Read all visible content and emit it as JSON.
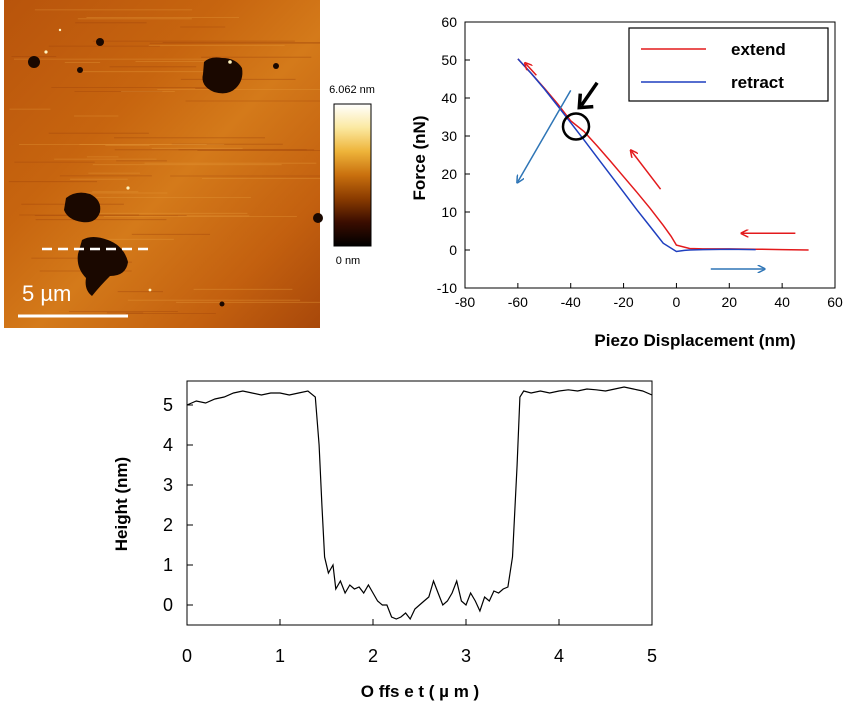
{
  "afm_image": {
    "scale_bar_label": "5 µm",
    "colorbar_max_label": "6.062 nm",
    "colorbar_min_label": "0 nm",
    "colormap_colors": [
      "#000000",
      "#3a0d00",
      "#8a3b00",
      "#c9700e",
      "#eeb43a",
      "#fbe9a1",
      "#ffffff"
    ]
  },
  "chart_data": [
    {
      "type": "line",
      "xlabel": "Piezo Displacement (nm)",
      "ylabel": "Force (nN)",
      "xlim": [
        -80,
        60
      ],
      "ylim": [
        -10,
        60
      ],
      "xticks": [
        -80,
        -60,
        -40,
        -20,
        0,
        20,
        40,
        60
      ],
      "yticks": [
        -10,
        0,
        10,
        20,
        30,
        40,
        50,
        60
      ],
      "legend_position": "top-right",
      "series": [
        {
          "name": "extend",
          "color": "#e31a1c",
          "x": [
            -60,
            -55,
            -50,
            -45,
            -40,
            -35,
            -30,
            -25,
            -20,
            -15,
            -10,
            -5,
            -2,
            0,
            5,
            10,
            20,
            30,
            40,
            50
          ],
          "y": [
            50.3,
            46.5,
            42.6,
            38.5,
            34.0,
            31.2,
            27.4,
            23.4,
            19.3,
            15.2,
            11.0,
            6.5,
            3.6,
            1.3,
            0.4,
            0.3,
            0.3,
            0.2,
            0.1,
            0.0
          ]
        },
        {
          "name": "retract",
          "color": "#1f3fbf",
          "x": [
            -60,
            -55,
            -50,
            -45,
            -40,
            -35,
            -30,
            -25,
            -20,
            -15,
            -10,
            -5,
            0,
            3,
            5,
            10,
            20,
            30
          ],
          "y": [
            50.3,
            46.5,
            42.4,
            38.0,
            33.5,
            29.0,
            24.4,
            19.8,
            15.2,
            10.6,
            6.2,
            1.8,
            -0.4,
            -0.1,
            0.0,
            0.1,
            0.2,
            0.1
          ]
        }
      ],
      "annotations": {
        "arrow_color_extend": "#e31a1c",
        "arrow_color_retract": "#2e75b6",
        "arrow_color_left_slope": "#2e75b6",
        "circle_at": [
          -38,
          32.5
        ]
      }
    },
    {
      "type": "line",
      "xlabel": "O ffs e t ( µ m )",
      "ylabel": "Height (nm)",
      "xlim": [
        0,
        5
      ],
      "ylim": [
        -0.5,
        5.6
      ],
      "xticks": [
        0,
        1,
        2,
        3,
        4,
        5
      ],
      "yticks": [
        0,
        1,
        2,
        3,
        4,
        5
      ],
      "series": [
        {
          "color": "#000000",
          "x": [
            0,
            0.1,
            0.2,
            0.3,
            0.4,
            0.5,
            0.6,
            0.7,
            0.8,
            0.9,
            1.0,
            1.1,
            1.2,
            1.3,
            1.38,
            1.42,
            1.45,
            1.48,
            1.52,
            1.57,
            1.6,
            1.65,
            1.7,
            1.75,
            1.8,
            1.85,
            1.9,
            1.95,
            2.0,
            2.05,
            2.1,
            2.15,
            2.2,
            2.25,
            2.3,
            2.35,
            2.4,
            2.45,
            2.5,
            2.55,
            2.6,
            2.65,
            2.7,
            2.75,
            2.8,
            2.85,
            2.9,
            2.95,
            3.0,
            3.05,
            3.1,
            3.15,
            3.2,
            3.25,
            3.3,
            3.35,
            3.4,
            3.45,
            3.5,
            3.55,
            3.58,
            3.62,
            3.7,
            3.8,
            3.9,
            4.0,
            4.1,
            4.2,
            4.3,
            4.4,
            4.5,
            4.6,
            4.7,
            4.8,
            4.9,
            5.0
          ],
          "y": [
            5.0,
            5.1,
            5.05,
            5.15,
            5.2,
            5.3,
            5.35,
            5.3,
            5.25,
            5.3,
            5.3,
            5.25,
            5.3,
            5.35,
            5.2,
            4.0,
            2.5,
            1.2,
            0.8,
            1.0,
            0.4,
            0.6,
            0.3,
            0.5,
            0.4,
            0.45,
            0.3,
            0.5,
            0.3,
            0.1,
            0.0,
            0.0,
            -0.3,
            -0.35,
            -0.3,
            -0.2,
            -0.35,
            -0.1,
            0.0,
            0.1,
            0.2,
            0.6,
            0.3,
            0.0,
            0.1,
            0.3,
            0.6,
            0.1,
            0.0,
            0.3,
            0.1,
            -0.15,
            0.2,
            0.1,
            0.35,
            0.3,
            0.4,
            0.45,
            1.2,
            3.5,
            5.2,
            5.35,
            5.3,
            5.35,
            5.3,
            5.35,
            5.38,
            5.35,
            5.4,
            5.38,
            5.35,
            5.4,
            5.45,
            5.4,
            5.35,
            5.25
          ]
        }
      ]
    }
  ]
}
